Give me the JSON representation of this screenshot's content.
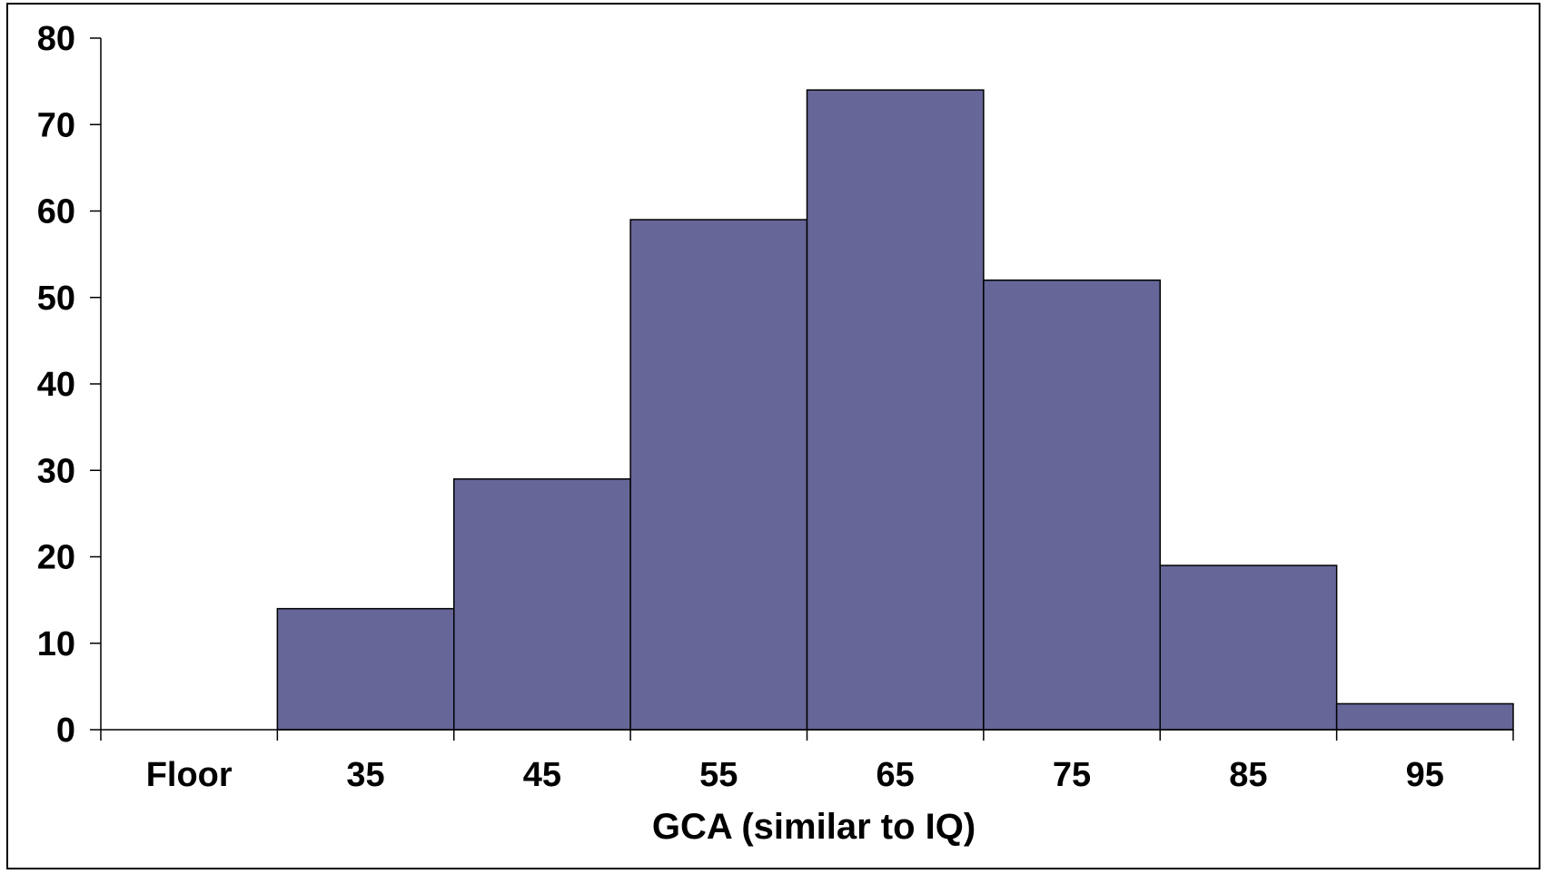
{
  "chart_data": {
    "type": "bar",
    "title": "",
    "xlabel": "GCA (similar to IQ)",
    "ylabel": "",
    "categories": [
      "Floor",
      "35",
      "45",
      "55",
      "65",
      "75",
      "85",
      "95"
    ],
    "values": [
      0,
      14,
      29,
      59,
      74,
      52,
      19,
      3
    ],
    "ylim": [
      0,
      80
    ],
    "yticks": [
      "0",
      "10",
      "20",
      "30",
      "40",
      "50",
      "60",
      "70",
      "80"
    ],
    "grid": false,
    "legend": "none",
    "bar_color": "#666699",
    "bar_edge_color": "#000000"
  }
}
